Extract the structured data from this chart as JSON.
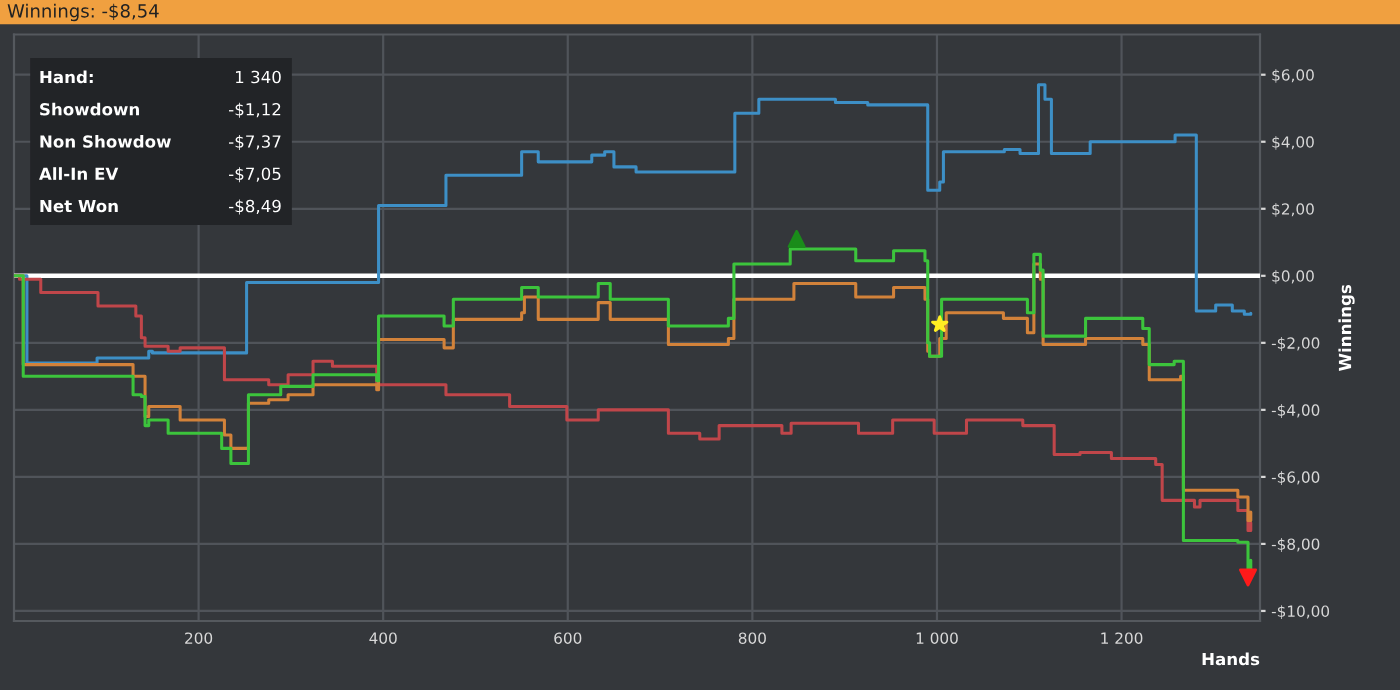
{
  "chart_data": {
    "type": "step",
    "title": "Winnings: -$8,54",
    "xlabel": "Hands",
    "ylabel": "Winnings",
    "xlim": [
      0,
      1350
    ],
    "ylim": [
      -10.3,
      7.2
    ],
    "xticks": [
      200,
      400,
      600,
      800,
      {
        "value": 1000,
        "label": "1 000"
      },
      {
        "value": 1200,
        "label": "1 200"
      }
    ],
    "yticks": [
      {
        "value": -10,
        "label": "-$10,00"
      },
      {
        "value": -8,
        "label": "-$8,00"
      },
      {
        "value": -6,
        "label": "-$6,00"
      },
      {
        "value": -4,
        "label": "-$4,00"
      },
      {
        "value": -2,
        "label": "-$2,00"
      },
      {
        "value": 0,
        "label": "$0,00"
      },
      {
        "value": 2,
        "label": "$2,00"
      },
      {
        "value": 4,
        "label": "$4,00"
      },
      {
        "value": 6,
        "label": "$6,00"
      }
    ],
    "grid": true,
    "ref_lines": [
      {
        "axis": "y",
        "value": 0,
        "label": null,
        "color": "#ffffff"
      }
    ],
    "annotations": [
      "Hand:",
      "1 340",
      "Showdown",
      "-$1,12",
      "Non Showdow",
      "-$7,37",
      "All-In EV",
      "-$7,05",
      "Net Won",
      "-$8,49"
    ],
    "series": [
      {
        "color": "#3d8fc6",
        "x": [
          0,
          14,
          90,
          146,
          150,
          249,
          252,
          393,
          395,
          468,
          550,
          568,
          626,
          640,
          650,
          674,
          725,
          781,
          807,
          890,
          925,
          990,
          1003,
          1007,
          1073,
          1090,
          1110,
          1117,
          1124,
          1166,
          1258,
          1281,
          1302,
          1320,
          1333,
          1340
        ],
        "values": [
          0,
          -2.6,
          -2.45,
          -2.25,
          -2.3,
          -2.3,
          -0.2,
          -0.2,
          2.1,
          3.0,
          3.7,
          3.4,
          3.6,
          3.7,
          3.25,
          3.1,
          3.1,
          4.85,
          5.27,
          5.17,
          5.1,
          2.55,
          2.8,
          3.7,
          3.77,
          3.65,
          5.7,
          5.27,
          3.65,
          4.0,
          4.2,
          -1.05,
          -0.87,
          -1.05,
          -1.15,
          -1.12
        ]
      },
      {
        "color": "#c0464a",
        "x": [
          0,
          6,
          29,
          91,
          132,
          138,
          142,
          167,
          180,
          228,
          276,
          297,
          324,
          345,
          393,
          468,
          537,
          599,
          633,
          709,
          743,
          764,
          832,
          842,
          915,
          952,
          997,
          1032,
          1093,
          1127,
          1155,
          1189,
          1237,
          1244,
          1279,
          1285,
          1326,
          1337,
          1340
        ],
        "values": [
          0,
          -0.1,
          -0.5,
          -0.9,
          -1.2,
          -1.85,
          -2.1,
          -2.25,
          -2.15,
          -3.1,
          -3.25,
          -2.95,
          -2.55,
          -2.7,
          -3.25,
          -3.55,
          -3.9,
          -4.3,
          -4.0,
          -4.7,
          -4.87,
          -4.47,
          -4.7,
          -4.4,
          -4.7,
          -4.3,
          -4.7,
          -4.3,
          -4.47,
          -5.33,
          -5.27,
          -5.45,
          -5.63,
          -6.7,
          -6.9,
          -6.7,
          -7.0,
          -7.6,
          -7.37
        ]
      },
      {
        "color": "#d2823a",
        "x": [
          0,
          10,
          25,
          129,
          138,
          142,
          146,
          180,
          228,
          235,
          249,
          254,
          276,
          297,
          324,
          393,
          395,
          466,
          476,
          550,
          553,
          568,
          633,
          646,
          709,
          774,
          780,
          845,
          912,
          953,
          987,
          990,
          992,
          1003,
          1010,
          1072,
          1098,
          1105,
          1112,
          1115,
          1161,
          1223,
          1230,
          1264,
          1267,
          1326,
          1337,
          1340
        ],
        "values": [
          0,
          -2.65,
          -2.65,
          -3.0,
          -3.0,
          -4.2,
          -3.9,
          -4.3,
          -4.75,
          -5.15,
          -5.15,
          -3.8,
          -3.7,
          -3.55,
          -3.25,
          -3.4,
          -1.9,
          -2.15,
          -1.3,
          -1.1,
          -0.63,
          -1.3,
          -0.8,
          -1.3,
          -2.05,
          -1.87,
          -0.7,
          -0.23,
          -0.63,
          -0.35,
          -0.7,
          -2.25,
          -2.4,
          -1.87,
          -1.1,
          -1.27,
          -1.7,
          0.35,
          -0.1,
          -2.05,
          -1.87,
          -2.05,
          -3.1,
          -3.0,
          -6.4,
          -6.6,
          -7.3,
          -7.05
        ]
      },
      {
        "color": "#3cc43c",
        "x": [
          0,
          10,
          25,
          129,
          138,
          142,
          146,
          167,
          225,
          235,
          249,
          254,
          289,
          324,
          393,
          395,
          466,
          476,
          550,
          568,
          633,
          646,
          709,
          774,
          780,
          841,
          912,
          953,
          987,
          990,
          992,
          1005,
          1072,
          1098,
          1105,
          1112,
          1115,
          1161,
          1223,
          1230,
          1257,
          1267,
          1326,
          1337,
          1340
        ],
        "values": [
          0,
          -3.0,
          -3.0,
          -3.55,
          -3.6,
          -4.47,
          -4.3,
          -4.7,
          -5.15,
          -5.6,
          -5.6,
          -3.55,
          -3.3,
          -2.95,
          -3.13,
          -1.2,
          -1.5,
          -0.7,
          -0.35,
          -0.63,
          -0.23,
          -0.7,
          -1.5,
          -1.27,
          0.35,
          0.8,
          0.45,
          0.75,
          0.45,
          -2.0,
          -2.4,
          -0.7,
          -0.7,
          -1.1,
          0.64,
          0.17,
          -1.8,
          -1.27,
          -1.57,
          -2.65,
          -2.55,
          -7.9,
          -7.95,
          -8.75,
          -8.49
        ]
      },
      {
        "type": "scatter",
        "marker": "triangle",
        "color": "#1a8c1a",
        "x": [
          848
        ],
        "values": [
          1.1
        ]
      },
      {
        "type": "scatter",
        "marker": "star",
        "color": "#ffee22",
        "x": [
          1003
        ],
        "values": [
          -1.45
        ]
      },
      {
        "type": "scatter",
        "marker": "triangle_down",
        "color": "#ff1a1a",
        "x": [
          1337
        ],
        "values": [
          -9.0
        ]
      }
    ]
  }
}
